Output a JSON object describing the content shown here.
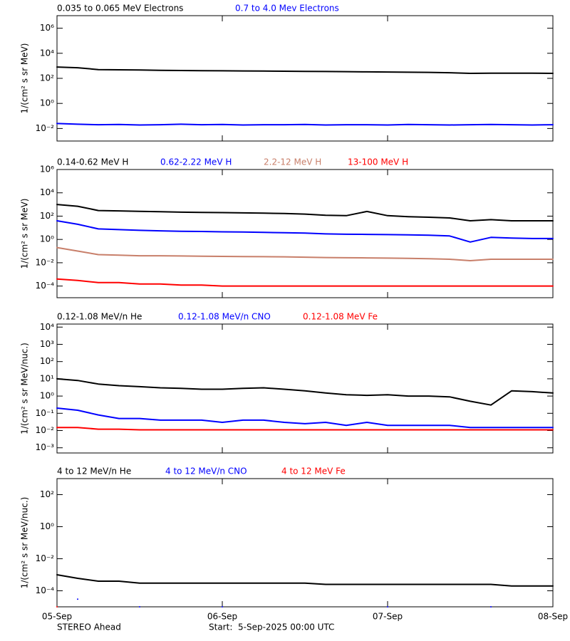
{
  "chart_data": [
    {
      "type": "line",
      "yscale": "log",
      "ylabel": "1/(cm² s sr MeV)",
      "xlim": [
        0,
        3
      ],
      "ylim": [
        0.001,
        10000000
      ],
      "yticks": [
        {
          "value": 0.01,
          "label": "10⁻²"
        },
        {
          "value": 1,
          "label": "10⁰"
        },
        {
          "value": 100,
          "label": "10²"
        },
        {
          "value": 10000,
          "label": "10⁴"
        },
        {
          "value": 1000000,
          "label": "10⁶"
        }
      ],
      "x": [
        0,
        0.125,
        0.25,
        0.375,
        0.5,
        0.625,
        0.75,
        0.875,
        1,
        1.125,
        1.25,
        1.375,
        1.5,
        1.625,
        1.75,
        1.875,
        2,
        2.125,
        2.25,
        2.375,
        2.5,
        2.625,
        2.75,
        2.875,
        3
      ],
      "series": [
        {
          "name": "0.035 to 0.065 MeV Electrons",
          "color": "#000000",
          "values": [
            800,
            700,
            500,
            480,
            460,
            440,
            420,
            410,
            400,
            390,
            380,
            370,
            360,
            350,
            340,
            330,
            320,
            310,
            300,
            280,
            250,
            260,
            260,
            260,
            250
          ]
        },
        {
          "name": "0.7 to 4.0 Mev Electrons",
          "color": "#0000ff",
          "values": [
            0.025,
            0.022,
            0.02,
            0.021,
            0.019,
            0.02,
            0.022,
            0.02,
            0.021,
            0.019,
            0.02,
            0.02,
            0.021,
            0.019,
            0.02,
            0.02,
            0.019,
            0.021,
            0.02,
            0.019,
            0.02,
            0.021,
            0.02,
            0.019,
            0.02
          ]
        }
      ]
    },
    {
      "type": "line",
      "yscale": "log",
      "ylabel": "1/(cm² s sr MeV)",
      "xlim": [
        0,
        3
      ],
      "ylim": [
        1e-05,
        1000000
      ],
      "yticks": [
        {
          "value": 0.0001,
          "label": "10⁻⁴"
        },
        {
          "value": 0.01,
          "label": "10⁻²"
        },
        {
          "value": 1,
          "label": "10⁰"
        },
        {
          "value": 100,
          "label": "10²"
        },
        {
          "value": 10000,
          "label": "10⁴"
        },
        {
          "value": 1000000,
          "label": "10⁶"
        }
      ],
      "x": [
        0,
        0.125,
        0.25,
        0.375,
        0.5,
        0.625,
        0.75,
        0.875,
        1,
        1.125,
        1.25,
        1.375,
        1.5,
        1.625,
        1.75,
        1.875,
        2,
        2.125,
        2.25,
        2.375,
        2.5,
        2.625,
        2.75,
        2.875,
        3
      ],
      "series": [
        {
          "name": "0.14-0.62 MeV H",
          "color": "#000000",
          "values": [
            1000,
            700,
            300,
            280,
            260,
            240,
            220,
            210,
            200,
            190,
            180,
            170,
            150,
            120,
            110,
            250,
            110,
            90,
            80,
            70,
            40,
            50,
            40,
            40,
            40
          ]
        },
        {
          "name": "0.62-2.22 MeV H",
          "color": "#0000ff",
          "values": [
            40,
            20,
            8,
            7,
            6,
            5.5,
            5,
            4.8,
            4.5,
            4.3,
            4,
            3.8,
            3.5,
            3,
            2.8,
            2.7,
            2.6,
            2.5,
            2.3,
            2,
            0.6,
            1.5,
            1.3,
            1.2,
            1.2
          ]
        },
        {
          "name": "2.2-12 MeV H",
          "color": "#c87f6a",
          "values": [
            0.2,
            0.1,
            0.05,
            0.045,
            0.04,
            0.04,
            0.038,
            0.036,
            0.035,
            0.034,
            0.033,
            0.032,
            0.03,
            0.028,
            0.027,
            0.026,
            0.025,
            0.024,
            0.022,
            0.02,
            0.015,
            0.02,
            0.02,
            0.02,
            0.02
          ]
        },
        {
          "name": "13-100 MeV H",
          "color": "#ff0000",
          "values": [
            0.0004,
            0.0003,
            0.0002,
            0.0002,
            0.00015,
            0.00015,
            0.00012,
            0.00012,
            0.0001,
            0.0001,
            0.0001,
            0.0001,
            0.0001,
            0.0001,
            0.0001,
            0.0001,
            0.0001,
            0.0001,
            0.0001,
            0.0001,
            0.0001,
            0.0001,
            0.0001,
            0.0001,
            0.0001
          ]
        }
      ]
    },
    {
      "type": "line",
      "yscale": "log",
      "ylabel": "1/(cm² s sr MeV/nuc.)",
      "xlim": [
        0,
        3
      ],
      "ylim": [
        0.0005,
        15000
      ],
      "yticks": [
        {
          "value": 0.001,
          "label": "10⁻³"
        },
        {
          "value": 0.01,
          "label": "10⁻²"
        },
        {
          "value": 0.1,
          "label": "10⁻¹"
        },
        {
          "value": 1,
          "label": "10⁰"
        },
        {
          "value": 10,
          "label": "10¹"
        },
        {
          "value": 100,
          "label": "10²"
        },
        {
          "value": 1000,
          "label": "10³"
        },
        {
          "value": 10000,
          "label": "10⁴"
        }
      ],
      "x": [
        0,
        0.125,
        0.25,
        0.375,
        0.5,
        0.625,
        0.75,
        0.875,
        1,
        1.125,
        1.25,
        1.375,
        1.5,
        1.625,
        1.75,
        1.875,
        2,
        2.125,
        2.25,
        2.375,
        2.5,
        2.625,
        2.75,
        2.875,
        3
      ],
      "series": [
        {
          "name": "0.12-1.08 MeV/n He",
          "color": "#000000",
          "values": [
            10,
            8,
            5,
            4,
            3.5,
            3,
            2.8,
            2.5,
            2.5,
            2.8,
            3,
            2.5,
            2,
            1.5,
            1.2,
            1.1,
            1.2,
            1,
            1,
            0.9,
            0.5,
            0.3,
            2,
            1.8,
            1.5
          ]
        },
        {
          "name": "0.12-1.08 MeV/n CNO",
          "color": "#0000ff",
          "values": [
            0.2,
            0.15,
            0.08,
            0.05,
            0.05,
            0.04,
            0.04,
            0.04,
            0.03,
            0.04,
            0.04,
            0.03,
            0.025,
            0.03,
            0.02,
            0.03,
            0.02,
            0.02,
            0.02,
            0.02,
            0.015,
            0.015,
            0.015,
            0.015,
            0.015
          ]
        },
        {
          "name": "0.12-1.08 MeV Fe",
          "color": "#ff0000",
          "values": [
            0.015,
            0.015,
            0.012,
            0.012,
            0.011,
            0.011,
            0.011,
            0.011,
            0.011,
            0.011,
            0.011,
            0.011,
            0.011,
            0.011,
            0.011,
            0.011,
            0.011,
            0.011,
            0.011,
            0.011,
            0.011,
            0.011,
            0.011,
            0.011,
            0.011
          ]
        }
      ]
    },
    {
      "type": "line",
      "yscale": "log",
      "ylabel": "1/(cm² s sr MeV/nuc.)",
      "xlim": [
        0,
        3
      ],
      "ylim": [
        1e-05,
        1000
      ],
      "yticks": [
        {
          "value": 0.0001,
          "label": "10⁻⁴"
        },
        {
          "value": 0.01,
          "label": "10⁻²"
        },
        {
          "value": 1,
          "label": "10⁰"
        },
        {
          "value": 100,
          "label": "10²"
        }
      ],
      "xticks": [
        {
          "value": 0,
          "label": "05-Sep"
        },
        {
          "value": 1,
          "label": "06-Sep"
        },
        {
          "value": 2,
          "label": "07-Sep"
        },
        {
          "value": 3,
          "label": "08-Sep"
        }
      ],
      "x": [
        0,
        0.125,
        0.25,
        0.375,
        0.5,
        0.625,
        0.75,
        0.875,
        1,
        1.125,
        1.25,
        1.375,
        1.5,
        1.625,
        1.75,
        1.875,
        2,
        2.125,
        2.25,
        2.375,
        2.5,
        2.625,
        2.75,
        2.875,
        3
      ],
      "series": [
        {
          "name": "4 to 12 MeV/n He",
          "color": "#000000",
          "values": [
            0.001,
            0.0006,
            0.0004,
            0.0004,
            0.0003,
            0.0003,
            0.0003,
            0.0003,
            0.0003,
            0.0003,
            0.0003,
            0.0003,
            0.0003,
            0.00025,
            0.00025,
            0.00025,
            0.00025,
            0.00025,
            0.00025,
            0.00025,
            0.00025,
            0.00025,
            0.0002,
            0.0002,
            0.0002
          ]
        },
        {
          "name": "4 to 12 MeV/n CNO",
          "color": "#0000ff",
          "values": [
            null,
            3e-05,
            null,
            null,
            1e-05,
            null,
            null,
            null,
            1e-05,
            null,
            null,
            null,
            null,
            null,
            null,
            null,
            1e-05,
            null,
            null,
            null,
            null,
            1e-05,
            null,
            null,
            null
          ]
        },
        {
          "name": "4 to 12 MeV Fe",
          "color": "#ff0000",
          "values": [
            1e-05,
            null,
            null,
            null,
            null,
            null,
            null,
            null,
            null,
            null,
            null,
            null,
            null,
            null,
            null,
            null,
            null,
            null,
            null,
            null,
            null,
            null,
            null,
            null,
            null
          ]
        }
      ]
    }
  ],
  "footer": {
    "mission": "STEREO Ahead",
    "start": "Start:  5-Sep-2025 00:00 UTC"
  }
}
